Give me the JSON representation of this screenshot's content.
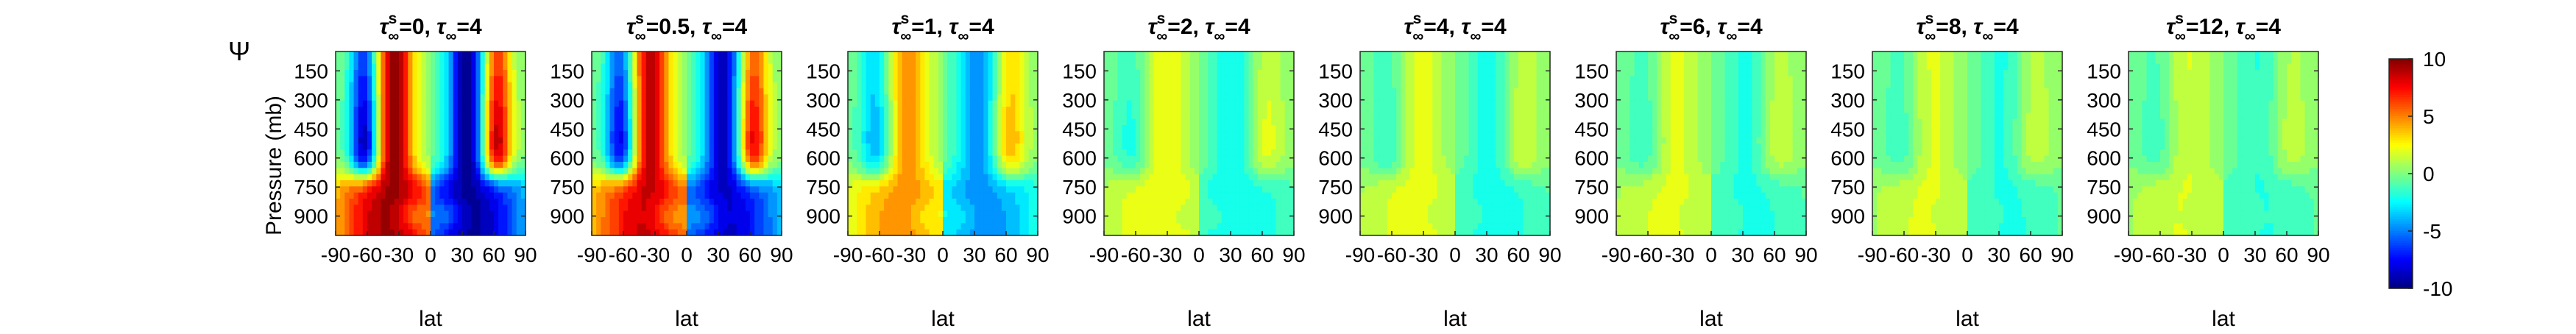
{
  "figure": {
    "label": "Ψ",
    "ylabel": "Pressure (mb)",
    "xlabel": "lat"
  },
  "colorbar": {
    "ticks": [
      "10",
      "5",
      "0",
      "-5",
      "-10"
    ],
    "range": [
      -10,
      10
    ]
  },
  "chart_data": {
    "type": "heatmap",
    "x_ticks": [
      "-90",
      "-60",
      "-30",
      "0",
      "30",
      "60",
      "90"
    ],
    "y_ticks": [
      "150",
      "300",
      "450",
      "600",
      "750",
      "900"
    ],
    "xlim": [
      -90,
      90
    ],
    "ylim": [
      50,
      1000
    ],
    "y_reversed": true,
    "clim": [
      -10,
      10
    ],
    "colormap": "jet",
    "panels": [
      {
        "tau_s": "0",
        "tau": "4",
        "amplitude": 10.0
      },
      {
        "tau_s": "0.5",
        "tau": "4",
        "amplitude": 9.0
      },
      {
        "tau_s": "1",
        "tau": "4",
        "amplitude": 5.0
      },
      {
        "tau_s": "2",
        "tau": "4",
        "amplitude": 2.6
      },
      {
        "tau_s": "4",
        "tau": "4",
        "amplitude": 2.2
      },
      {
        "tau_s": "6",
        "tau": "4",
        "amplitude": 2.0
      },
      {
        "tau_s": "8",
        "tau": "4",
        "amplitude": 1.9
      },
      {
        "tau_s": "12",
        "tau": "4",
        "amplitude": 1.8
      }
    ]
  }
}
